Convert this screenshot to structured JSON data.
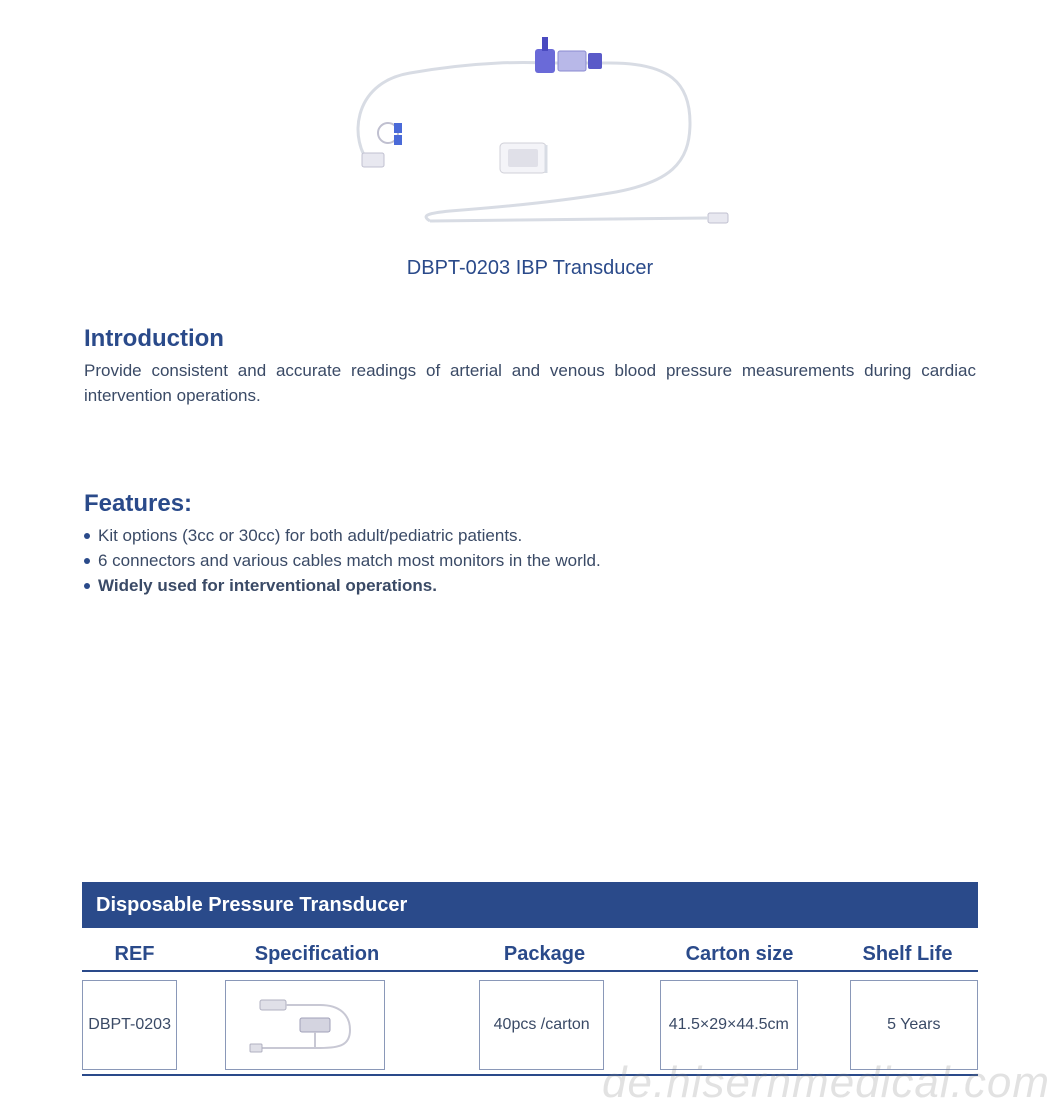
{
  "colors": {
    "accent": "#2a4a8a",
    "text_body": "#3a4a66",
    "bullet": "#2a4a8a",
    "header_bar_bg": "#2a4a8a",
    "header_bar_text": "#ffffff",
    "col_header_text": "#2a4a8a",
    "hr": "#2a4a8a",
    "cell_border": "#8a98b8",
    "cell_text": "#3a4a66",
    "watermark": "#808080"
  },
  "product": {
    "title": "DBPT-0203 IBP Transducer"
  },
  "intro": {
    "heading": "Introduction",
    "text": "Provide consistent and accurate readings of arterial and venous blood pressure measurements during cardiac intervention operations."
  },
  "features": {
    "heading": "Features:",
    "items": [
      {
        "text": "Kit options (3cc or 30cc) for both adult/pediatric patients.",
        "bold": false
      },
      {
        "text": "6 connectors and various cables match most monitors in the world.",
        "bold": false
      },
      {
        "text": "Widely used for interventional operations.",
        "bold": true
      }
    ]
  },
  "table": {
    "title": "Disposable Pressure Transducer",
    "columns": [
      "REF",
      "Specification",
      "Package",
      "Carton  size",
      "Shelf Life"
    ],
    "row": {
      "ref": "DBPT-0203",
      "package": "40pcs /carton",
      "carton_size": "41.5×29×44.5cm",
      "shelf_life": "5 Years"
    }
  },
  "watermark": "de.hisernmedical.com"
}
